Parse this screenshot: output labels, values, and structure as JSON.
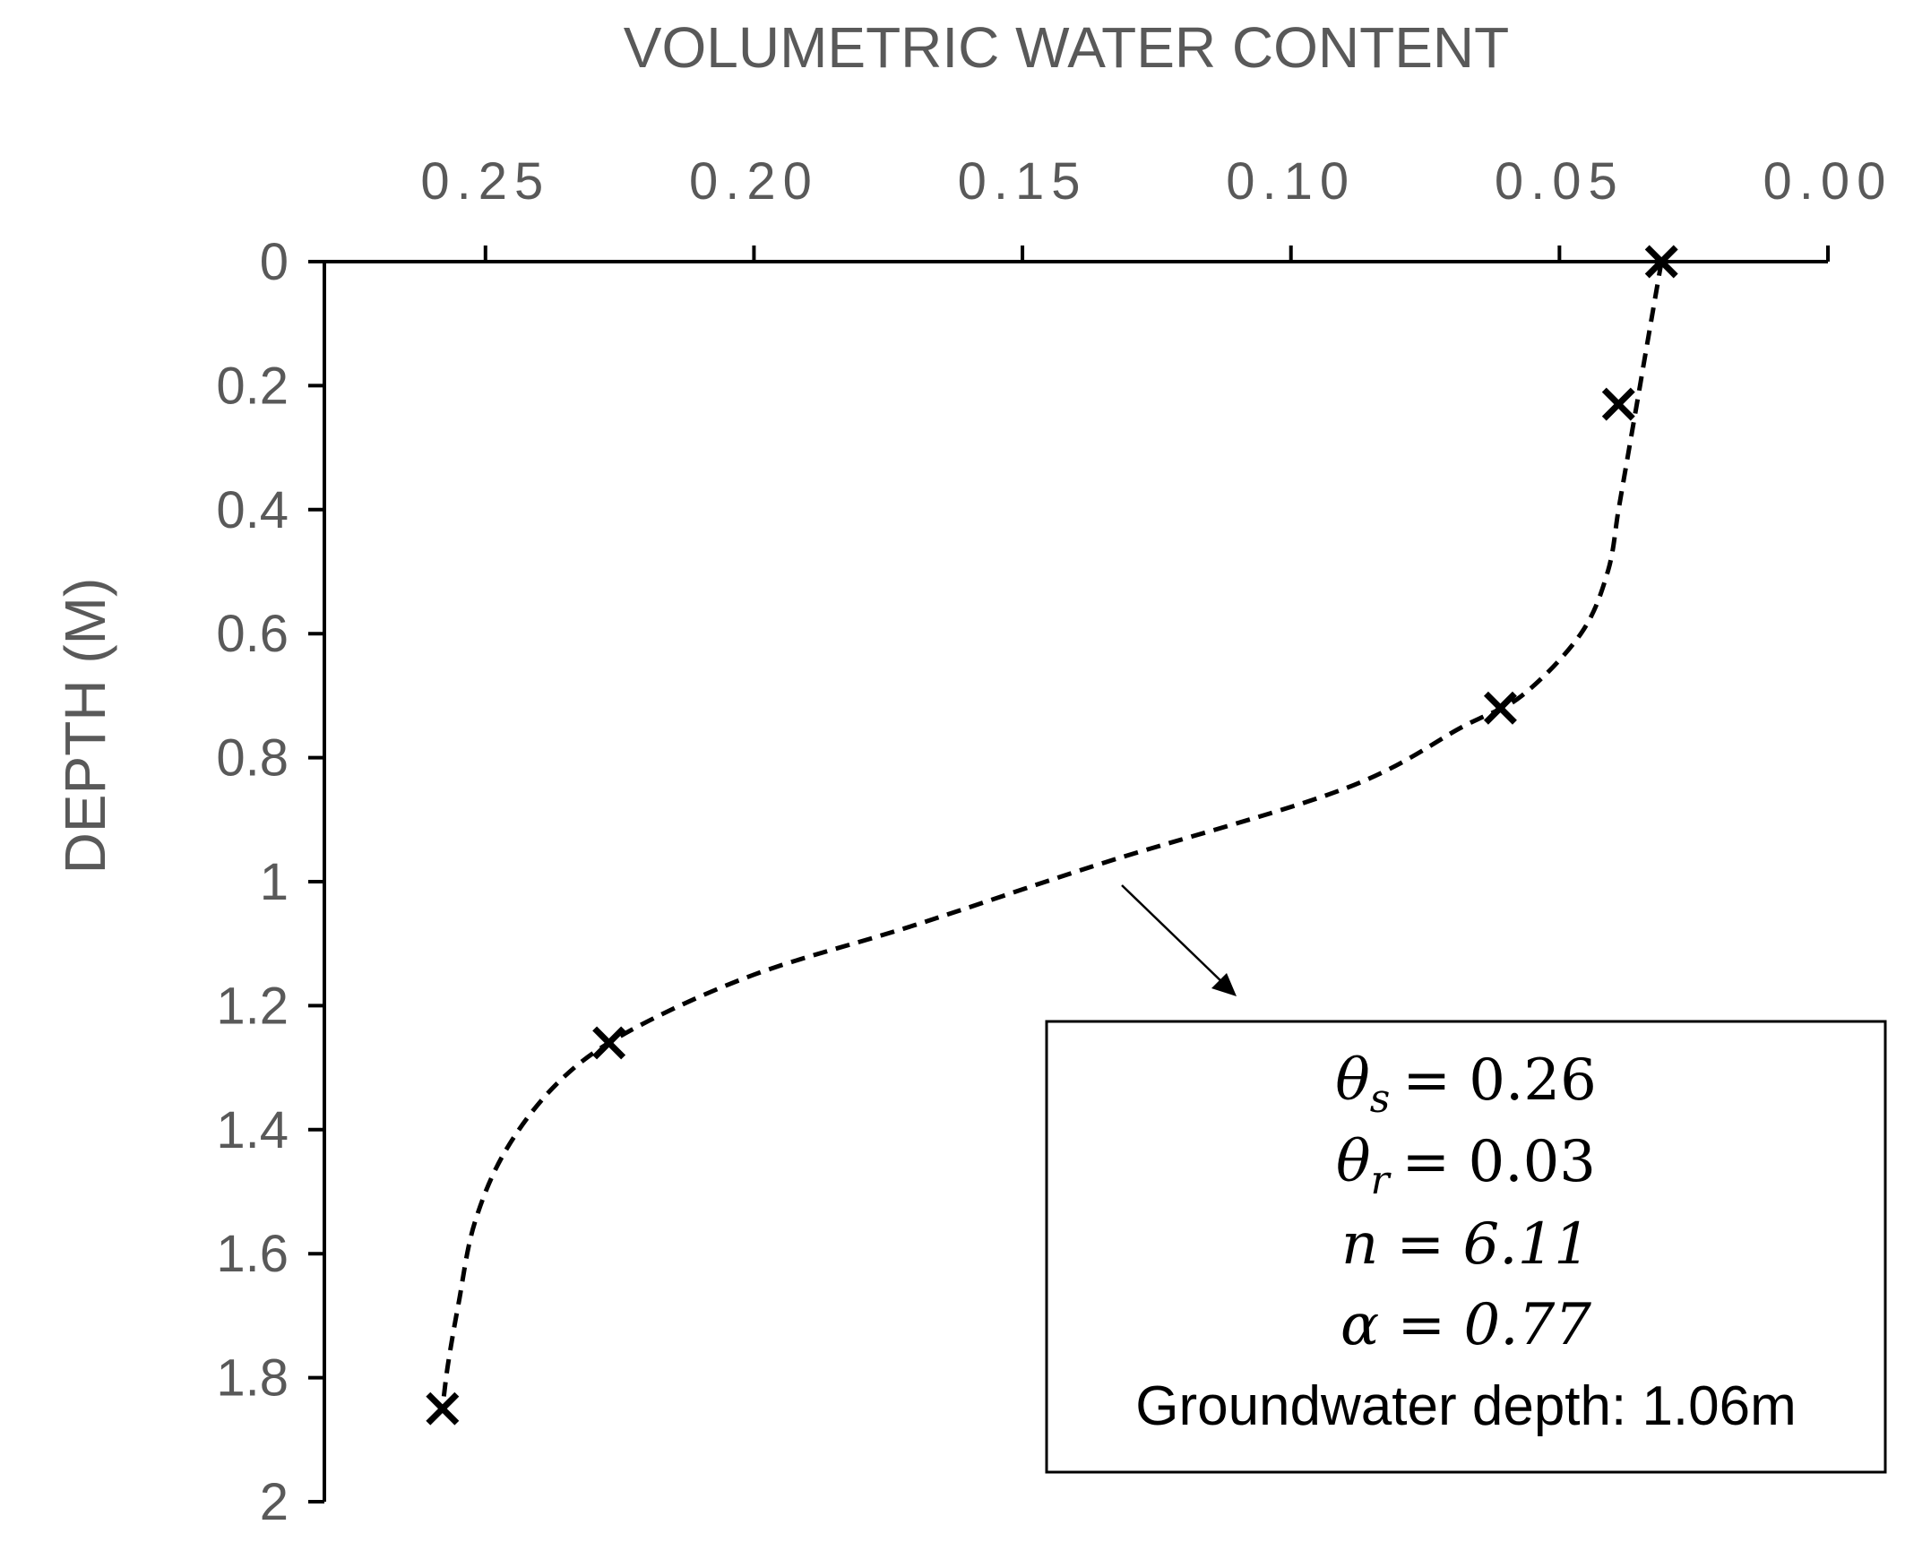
{
  "chart_data": {
    "type": "line",
    "title": "",
    "xlabel": "VOLUMETRIC WATER CONTENT",
    "ylabel": "DEPTH (M)",
    "x_axis_position": "top",
    "x_axis_reversed": true,
    "y_axis_reversed": true,
    "xlim": [
      0.0,
      0.28
    ],
    "ylim": [
      0,
      2
    ],
    "x_ticks": [
      "0.25",
      "0.20",
      "0.15",
      "0.10",
      "0.05",
      "0.00"
    ],
    "x_tick_values": [
      0.25,
      0.2,
      0.15,
      0.1,
      0.05,
      0.0
    ],
    "y_ticks": [
      "0",
      "0.2",
      "0.4",
      "0.6",
      "0.8",
      "1",
      "1.2",
      "1.4",
      "1.6",
      "1.8",
      "2"
    ],
    "y_tick_values": [
      0,
      0.2,
      0.4,
      0.6,
      0.8,
      1.0,
      1.2,
      1.4,
      1.6,
      1.8,
      2.0
    ],
    "grid": false,
    "series": [
      {
        "style": "markers",
        "marker": "x",
        "points": [
          {
            "x": 0.031,
            "y": 0.0
          },
          {
            "x": 0.039,
            "y": 0.23
          },
          {
            "x": 0.061,
            "y": 0.72
          },
          {
            "x": 0.227,
            "y": 1.26
          },
          {
            "x": 0.258,
            "y": 1.85
          }
        ]
      },
      {
        "style": "dashed",
        "points": [
          {
            "x": 0.031,
            "y": 0.0
          },
          {
            "x": 0.033,
            "y": 0.1
          },
          {
            "x": 0.035,
            "y": 0.2
          },
          {
            "x": 0.037,
            "y": 0.3
          },
          {
            "x": 0.039,
            "y": 0.4
          },
          {
            "x": 0.041,
            "y": 0.5
          },
          {
            "x": 0.046,
            "y": 0.6
          },
          {
            "x": 0.057,
            "y": 0.7
          },
          {
            "x": 0.068,
            "y": 0.75
          },
          {
            "x": 0.09,
            "y": 0.85
          },
          {
            "x": 0.135,
            "y": 0.97
          },
          {
            "x": 0.17,
            "y": 1.07
          },
          {
            "x": 0.2,
            "y": 1.15
          },
          {
            "x": 0.223,
            "y": 1.24
          },
          {
            "x": 0.236,
            "y": 1.32
          },
          {
            "x": 0.246,
            "y": 1.43
          },
          {
            "x": 0.252,
            "y": 1.55
          },
          {
            "x": 0.255,
            "y": 1.68
          },
          {
            "x": 0.257,
            "y": 1.78
          },
          {
            "x": 0.258,
            "y": 1.85
          }
        ]
      }
    ],
    "annotation": {
      "theta_s_symbol": "θ",
      "theta_s_sub": "s",
      "theta_s_value": "= 0.26",
      "theta_r_symbol": "θ",
      "theta_r_sub": "r",
      "theta_r_value": "= 0.03",
      "n_line": "n = 6.11",
      "alpha_line": "α = 0.77",
      "groundwater_line": "Groundwater depth: 1.06m"
    }
  }
}
